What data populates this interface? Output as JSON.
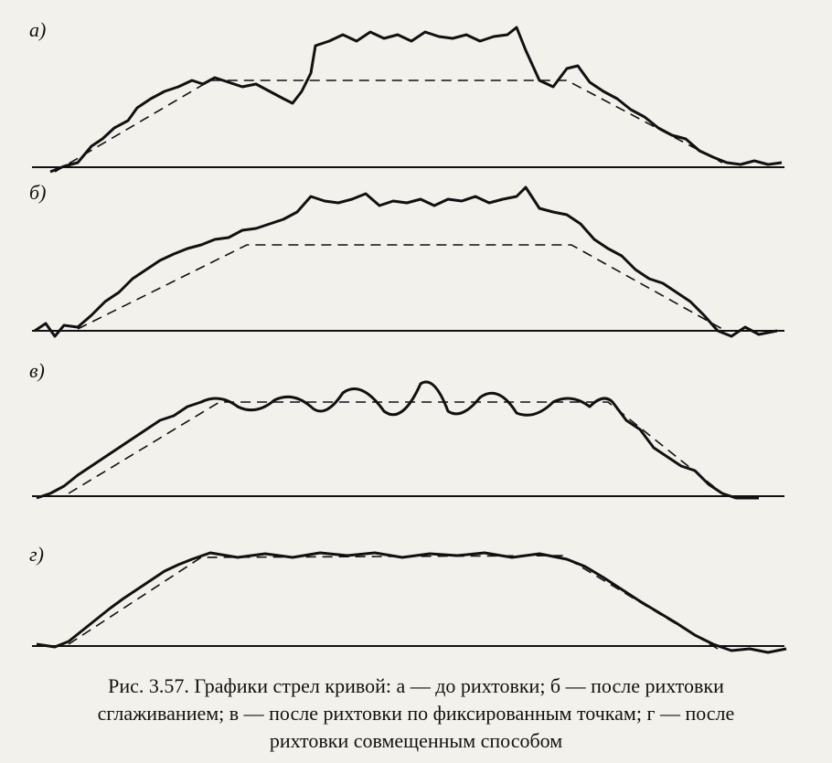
{
  "panels": [
    {
      "label": "а)"
    },
    {
      "label": "б)"
    },
    {
      "label": "в)"
    },
    {
      "label": "г)"
    }
  ],
  "caption": {
    "lines": [
      "Рис. 3.57. Графики стрел кривой: а — до рихтовки; б — после рихтовки",
      "сглаживанием; в — после рихтовки по фиксированным точкам; г — после",
      "рихтовки совмещенным способом"
    ]
  }
}
